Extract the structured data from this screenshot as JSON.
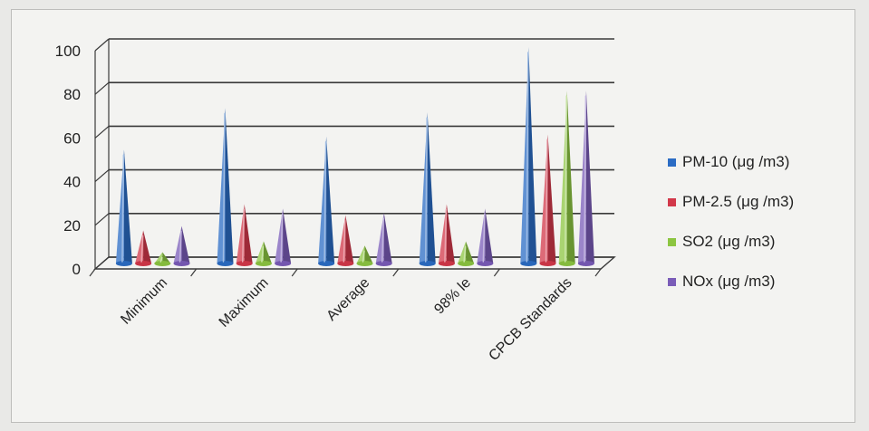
{
  "chart_data": {
    "type": "bar",
    "style": "3d-cone",
    "categories": [
      "Minimum",
      "Maximum",
      "Average",
      "98% le",
      "CPCB Standards"
    ],
    "series": [
      {
        "name": "PM-10 (μg /m3)",
        "color": "#2b6cc4",
        "values": [
          53,
          72,
          59,
          70,
          100
        ]
      },
      {
        "name": "PM-2.5 (μg /m3)",
        "color": "#d2384a",
        "values": [
          16,
          28,
          23,
          28,
          60
        ]
      },
      {
        "name": "SO2 (μg /m3)",
        "color": "#8cc541",
        "values": [
          6,
          11,
          9,
          11,
          80
        ]
      },
      {
        "name": "NOx (μg /m3)",
        "color": "#7a5cb8",
        "values": [
          18,
          26,
          24,
          26,
          80
        ]
      }
    ],
    "yticks": [
      "0",
      "20",
      "40",
      "60",
      "80",
      "100"
    ],
    "ylim": [
      0,
      100
    ],
    "grid": true,
    "legend_position": "right"
  }
}
